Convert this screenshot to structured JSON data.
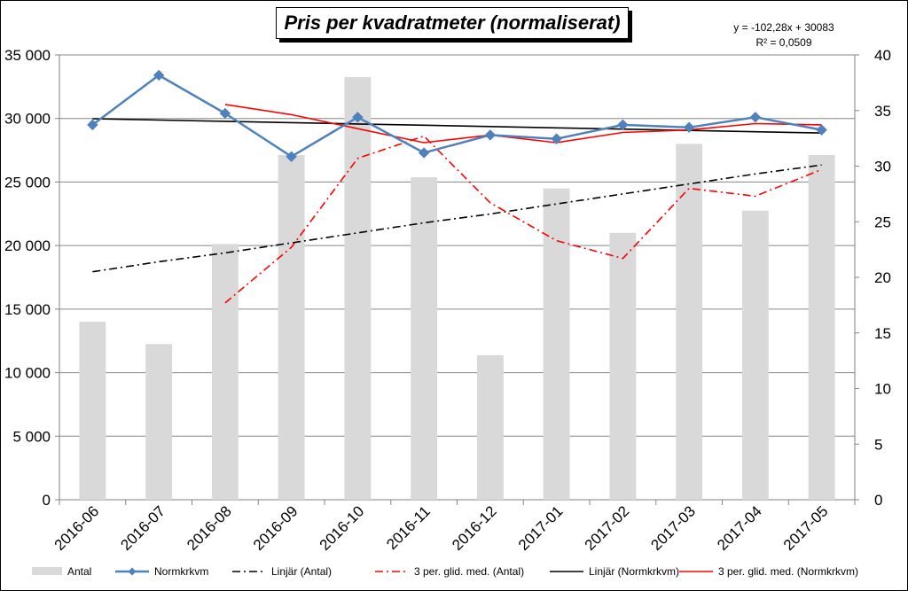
{
  "chart_data": {
    "type": "bar",
    "title": "Pris per kvadratmeter (normaliserat)",
    "categories": [
      "2016-06",
      "2016-07",
      "2016-08",
      "2016-09",
      "2016-10",
      "2016-11",
      "2016-12",
      "2017-01",
      "2017-02",
      "2017-03",
      "2017-04",
      "2017-05"
    ],
    "y_left": {
      "ylim": [
        0,
        35000
      ],
      "ticks": [
        0,
        5000,
        10000,
        15000,
        20000,
        25000,
        30000,
        35000
      ],
      "tick_labels": [
        "0",
        "5 000",
        "10 000",
        "15 000",
        "20 000",
        "25 000",
        "30 000",
        "35 000"
      ]
    },
    "y_right": {
      "ylim": [
        0,
        40
      ],
      "ticks": [
        0,
        5,
        10,
        15,
        20,
        25,
        30,
        35,
        40
      ],
      "tick_labels": [
        "0",
        "5",
        "10",
        "15",
        "20",
        "25",
        "30",
        "35",
        "40"
      ]
    },
    "grid": true,
    "legend_position": "bottom",
    "series": [
      {
        "name": "Antal",
        "type": "bar",
        "axis": "right",
        "color": "#d9d9d9",
        "values": [
          16,
          14,
          23,
          31,
          38,
          29,
          13,
          28,
          24,
          32,
          26,
          31
        ]
      },
      {
        "name": "Normkrkvm",
        "type": "line",
        "axis": "left",
        "color": "#4f81bd",
        "marker": "diamond",
        "values": [
          29500,
          33400,
          30400,
          27000,
          30100,
          27300,
          28700,
          28400,
          29500,
          29300,
          30100,
          29100
        ]
      },
      {
        "name": "Linjär (Antal)",
        "type": "trend",
        "axis": "right",
        "color": "#000000",
        "dash": "dashdot",
        "values": [
          20.5,
          21.4,
          22.2,
          23.1,
          24.0,
          24.9,
          25.7,
          26.6,
          27.5,
          28.4,
          29.3,
          30.1
        ]
      },
      {
        "name": "3 per. glid. med. (Antal)",
        "type": "moving_average",
        "axis": "right",
        "color": "#ff0000",
        "dash": "dashdot",
        "values": [
          null,
          null,
          17.7,
          22.7,
          30.7,
          32.7,
          26.7,
          23.3,
          21.7,
          28.0,
          27.3,
          29.7
        ]
      },
      {
        "name": "Linjär (Normkrkvm)",
        "type": "trend",
        "axis": "left",
        "color": "#000000",
        "dash": "solid",
        "values": [
          29981,
          29878,
          29776,
          29674,
          29572,
          29469,
          29367,
          29265,
          29162,
          29060,
          28958,
          28856
        ]
      },
      {
        "name": "3 per. glid. med. (Normkrkvm)",
        "type": "moving_average",
        "axis": "left",
        "color": "#ff0000",
        "dash": "solid",
        "values": [
          null,
          null,
          31100,
          30300,
          29200,
          28100,
          28700,
          28100,
          28900,
          29100,
          29600,
          29500
        ]
      }
    ],
    "annotations": {
      "equation": "y = -102,28x + 30083",
      "r2": "R² = 0,0509"
    }
  }
}
